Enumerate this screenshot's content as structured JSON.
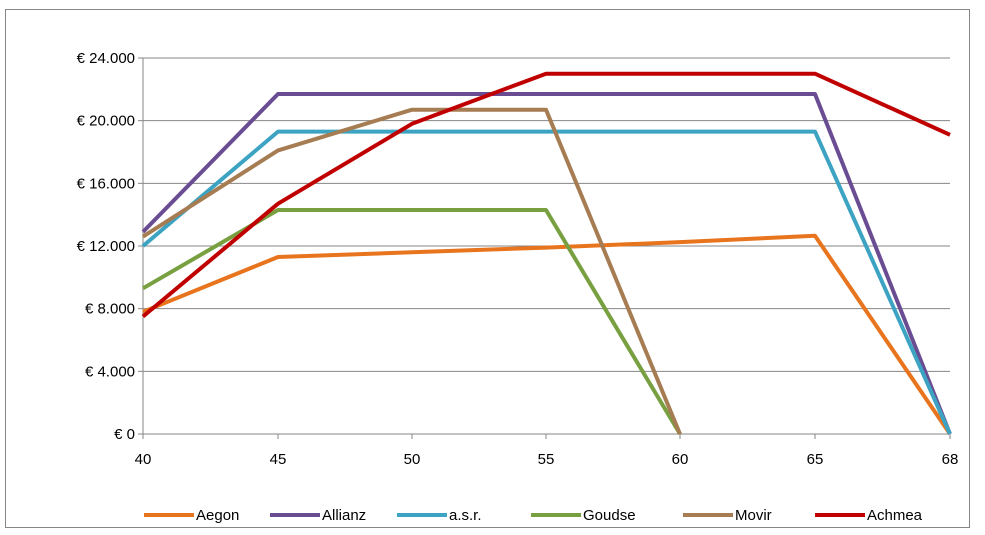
{
  "chart_data": {
    "type": "line",
    "title": "",
    "xlabel": "",
    "ylabel": "",
    "x": [
      40,
      45,
      50,
      55,
      60,
      65,
      68
    ],
    "x_tick_labels": [
      "40",
      "45",
      "50",
      "55",
      "60",
      "65",
      "68"
    ],
    "ylim": [
      0,
      24000
    ],
    "y_ticks": [
      0,
      4000,
      8000,
      12000,
      16000,
      20000,
      24000
    ],
    "y_tick_labels": [
      "€ 0",
      "€ 4.000",
      "€ 8.000",
      "€ 12.000",
      "€ 16.000",
      "€ 20.000",
      "€ 24.000"
    ],
    "grid": "horizontal",
    "legend_position": "bottom",
    "series": [
      {
        "name": "Aegon",
        "color": "#e8741e",
        "points": [
          [
            40,
            7800
          ],
          [
            45,
            11300
          ],
          [
            50,
            11600
          ],
          [
            55,
            11900
          ],
          [
            60,
            12250
          ],
          [
            65,
            12650
          ],
          [
            68,
            0
          ]
        ]
      },
      {
        "name": "Allianz",
        "color": "#6a4c93",
        "points": [
          [
            40,
            12900
          ],
          [
            45,
            21700
          ],
          [
            50,
            21700
          ],
          [
            55,
            21700
          ],
          [
            60,
            21700
          ],
          [
            65,
            21700
          ],
          [
            68,
            0
          ]
        ]
      },
      {
        "name": "a.s.r.",
        "color": "#3da3c2",
        "points": [
          [
            40,
            12000
          ],
          [
            45,
            19300
          ],
          [
            50,
            19300
          ],
          [
            55,
            19300
          ],
          [
            60,
            19300
          ],
          [
            65,
            19300
          ],
          [
            68,
            0
          ]
        ]
      },
      {
        "name": "Goudse",
        "color": "#78a040",
        "points": [
          [
            40,
            9300
          ],
          [
            45,
            14300
          ],
          [
            50,
            14300
          ],
          [
            55,
            14300
          ],
          [
            60,
            0
          ]
        ]
      },
      {
        "name": "Movir",
        "color": "#a67c52",
        "points": [
          [
            40,
            12600
          ],
          [
            45,
            18100
          ],
          [
            50,
            20700
          ],
          [
            55,
            20700
          ],
          [
            60,
            0
          ]
        ]
      },
      {
        "name": "Achmea",
        "color": "#c00000",
        "points": [
          [
            40,
            7500
          ],
          [
            45,
            14700
          ],
          [
            50,
            19800
          ],
          [
            55,
            23000
          ],
          [
            60,
            23000
          ],
          [
            65,
            23000
          ],
          [
            68,
            19100
          ]
        ]
      }
    ]
  }
}
